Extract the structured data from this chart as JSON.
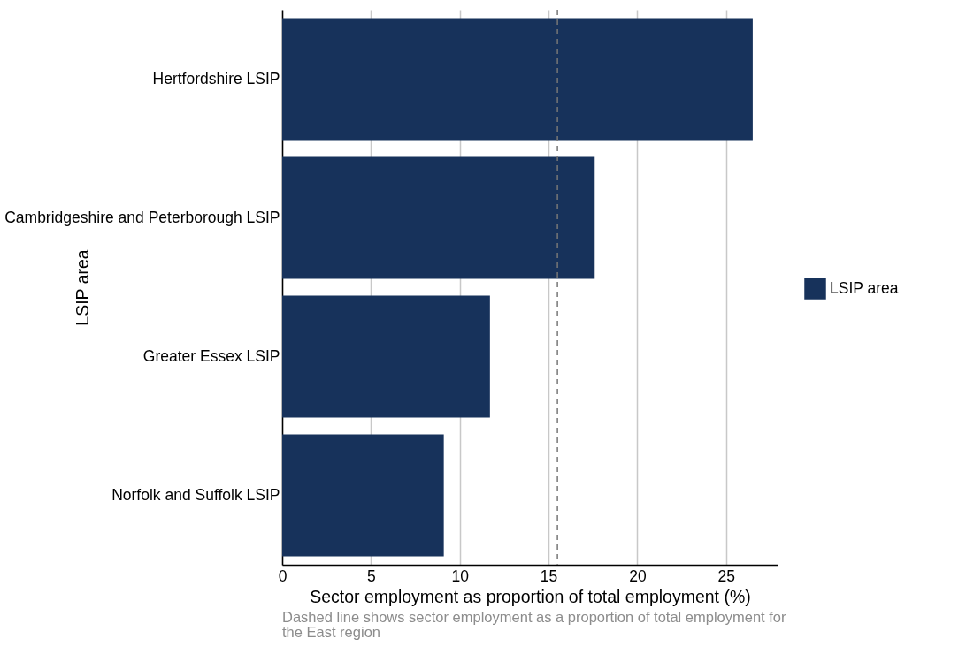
{
  "chart_data": {
    "type": "bar",
    "orientation": "horizontal",
    "categories": [
      "Hertfordshire LSIP",
      "Cambridgeshire and Peterborough LSIP",
      "Greater Essex LSIP",
      "Norfolk and Suffolk LSIP"
    ],
    "series": [
      {
        "name": "LSIP area",
        "color": "#17325b",
        "values": [
          26.5,
          17.6,
          11.7,
          9.1
        ]
      }
    ],
    "xlabel": "Sector employment as proportion of total employment (%)",
    "ylabel": "LSIP area",
    "xlim": [
      0,
      27.9
    ],
    "xticks": [
      0,
      5,
      10,
      15,
      20,
      25
    ],
    "grid": "x",
    "legend": "right",
    "ref_lines": [
      {
        "axis": "x",
        "value": 15.5,
        "color": "#777777",
        "line_style": "dashed"
      }
    ],
    "annotations": [
      "Dashed line shows sector employment as a proportion of total employment for the East region"
    ]
  }
}
